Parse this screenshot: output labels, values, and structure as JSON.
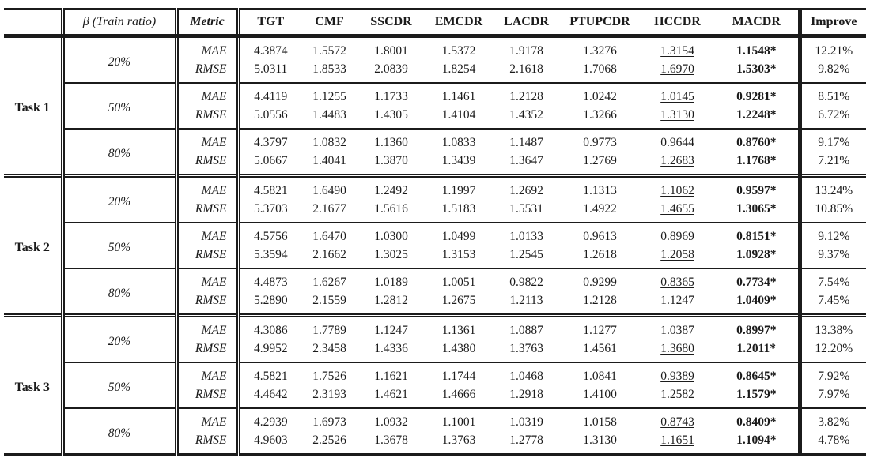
{
  "colors": {
    "text": "#1b1b1b",
    "rule": "#1b1b1b",
    "background": "#ffffff"
  },
  "table": {
    "header": {
      "task": "",
      "ratio": "β (Train ratio)",
      "metric": "Metric",
      "methods": [
        "TGT",
        "CMF",
        "SSCDR",
        "EMCDR",
        "LACDR",
        "PTUPCDR",
        "HCCDR",
        "MACDR"
      ],
      "improve": "Improve"
    },
    "emphasis": {
      "underlined_method": "HCCDR",
      "bold_method": "MACDR"
    },
    "tasks": [
      {
        "label": "Task 1",
        "groups": [
          {
            "ratio": "20%",
            "rows": [
              {
                "metric": "MAE",
                "values": [
                  "4.3874",
                  "1.5572",
                  "1.8001",
                  "1.5372",
                  "1.9178",
                  "1.3276",
                  "1.3154",
                  "1.1548*"
                ],
                "improve": "12.21%"
              },
              {
                "metric": "RMSE",
                "values": [
                  "5.0311",
                  "1.8533",
                  "2.0839",
                  "1.8254",
                  "2.1618",
                  "1.7068",
                  "1.6970",
                  "1.5303*"
                ],
                "improve": "9.82%"
              }
            ]
          },
          {
            "ratio": "50%",
            "rows": [
              {
                "metric": "MAE",
                "values": [
                  "4.4119",
                  "1.1255",
                  "1.1733",
                  "1.1461",
                  "1.2128",
                  "1.0242",
                  "1.0145",
                  "0.9281*"
                ],
                "improve": "8.51%"
              },
              {
                "metric": "RMSE",
                "values": [
                  "5.0556",
                  "1.4483",
                  "1.4305",
                  "1.4104",
                  "1.4352",
                  "1.3266",
                  "1.3130",
                  "1.2248*"
                ],
                "improve": "6.72%"
              }
            ]
          },
          {
            "ratio": "80%",
            "rows": [
              {
                "metric": "MAE",
                "values": [
                  "4.3797",
                  "1.0832",
                  "1.1360",
                  "1.0833",
                  "1.1487",
                  "0.9773",
                  "0.9644",
                  "0.8760*"
                ],
                "improve": "9.17%"
              },
              {
                "metric": "RMSE",
                "values": [
                  "5.0667",
                  "1.4041",
                  "1.3870",
                  "1.3439",
                  "1.3647",
                  "1.2769",
                  "1.2683",
                  "1.1768*"
                ],
                "improve": "7.21%"
              }
            ]
          }
        ]
      },
      {
        "label": "Task 2",
        "groups": [
          {
            "ratio": "20%",
            "rows": [
              {
                "metric": "MAE",
                "values": [
                  "4.5821",
                  "1.6490",
                  "1.2492",
                  "1.1997",
                  "1.2692",
                  "1.1313",
                  "1.1062",
                  "0.9597*"
                ],
                "improve": "13.24%"
              },
              {
                "metric": "RMSE",
                "values": [
                  "5.3703",
                  "2.1677",
                  "1.5616",
                  "1.5183",
                  "1.5531",
                  "1.4922",
                  "1.4655",
                  "1.3065*"
                ],
                "improve": "10.85%"
              }
            ]
          },
          {
            "ratio": "50%",
            "rows": [
              {
                "metric": "MAE",
                "values": [
                  "4.5756",
                  "1.6470",
                  "1.0300",
                  "1.0499",
                  "1.0133",
                  "0.9613",
                  "0.8969",
                  "0.8151*"
                ],
                "improve": "9.12%"
              },
              {
                "metric": "RMSE",
                "values": [
                  "5.3594",
                  "2.1662",
                  "1.3025",
                  "1.3153",
                  "1.2545",
                  "1.2618",
                  "1.2058",
                  "1.0928*"
                ],
                "improve": "9.37%"
              }
            ]
          },
          {
            "ratio": "80%",
            "rows": [
              {
                "metric": "MAE",
                "values": [
                  "4.4873",
                  "1.6267",
                  "1.0189",
                  "1.0051",
                  "0.9822",
                  "0.9299",
                  "0.8365",
                  "0.7734*"
                ],
                "improve": "7.54%"
              },
              {
                "metric": "RMSE",
                "values": [
                  "5.2890",
                  "2.1559",
                  "1.2812",
                  "1.2675",
                  "1.2113",
                  "1.2128",
                  "1.1247",
                  "1.0409*"
                ],
                "improve": "7.45%"
              }
            ]
          }
        ]
      },
      {
        "label": "Task 3",
        "groups": [
          {
            "ratio": "20%",
            "rows": [
              {
                "metric": "MAE",
                "values": [
                  "4.3086",
                  "1.7789",
                  "1.1247",
                  "1.1361",
                  "1.0887",
                  "1.1277",
                  "1.0387",
                  "0.8997*"
                ],
                "improve": "13.38%"
              },
              {
                "metric": "RMSE",
                "values": [
                  "4.9952",
                  "2.3458",
                  "1.4336",
                  "1.4380",
                  "1.3763",
                  "1.4561",
                  "1.3680",
                  "1.2011*"
                ],
                "improve": "12.20%"
              }
            ]
          },
          {
            "ratio": "50%",
            "rows": [
              {
                "metric": "MAE",
                "values": [
                  "4.5821",
                  "1.7526",
                  "1.1621",
                  "1.1744",
                  "1.0468",
                  "1.0841",
                  "0.9389",
                  "0.8645*"
                ],
                "improve": "7.92%"
              },
              {
                "metric": "RMSE",
                "values": [
                  "4.4642",
                  "2.3193",
                  "1.4621",
                  "1.4666",
                  "1.2918",
                  "1.4100",
                  "1.2582",
                  "1.1579*"
                ],
                "improve": "7.97%"
              }
            ]
          },
          {
            "ratio": "80%",
            "rows": [
              {
                "metric": "MAE",
                "values": [
                  "4.2939",
                  "1.6973",
                  "1.0932",
                  "1.1001",
                  "1.0319",
                  "1.0158",
                  "0.8743",
                  "0.8409*"
                ],
                "improve": "3.82%"
              },
              {
                "metric": "RMSE",
                "values": [
                  "4.9603",
                  "2.2526",
                  "1.3678",
                  "1.3763",
                  "1.2778",
                  "1.3130",
                  "1.1651",
                  "1.1094*"
                ],
                "improve": "4.78%"
              }
            ]
          }
        ]
      }
    ]
  }
}
